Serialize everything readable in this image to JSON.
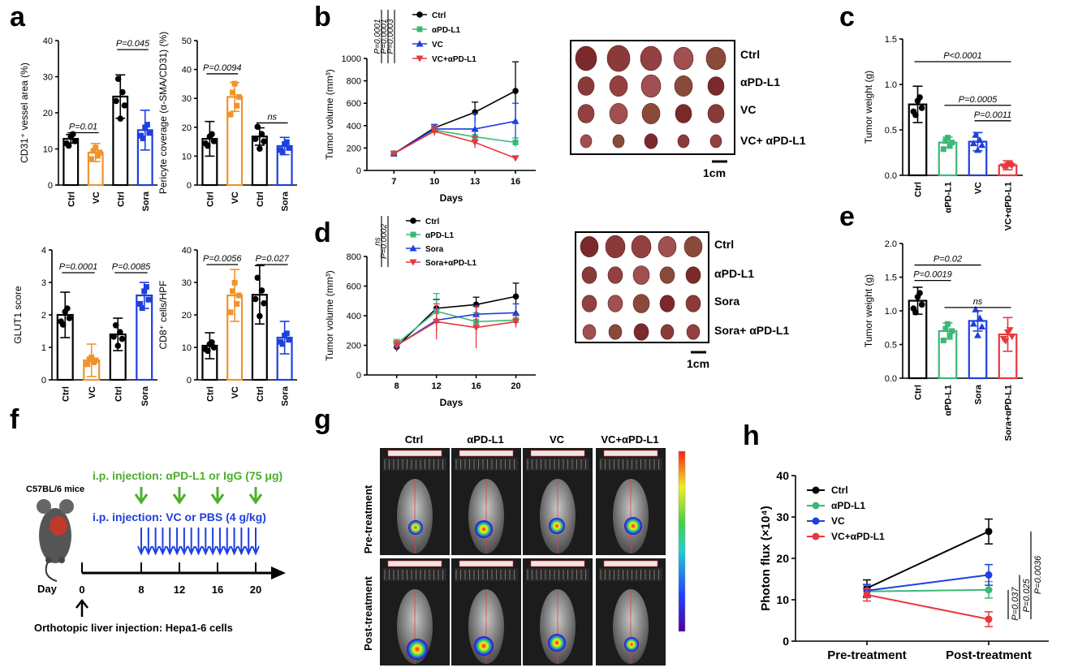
{
  "panel_labels": {
    "a": "a",
    "b": "b",
    "c": "c",
    "d": "d",
    "e": "e",
    "f": "f",
    "g": "g",
    "h": "h"
  },
  "chart_data": [
    {
      "id": "a1",
      "type": "bar",
      "categories": [
        "Ctrl",
        "VC",
        "Ctrl",
        "Sora"
      ],
      "values": [
        12.8,
        9,
        24.5,
        15.2
      ],
      "errors": [
        1.2,
        2.5,
        6,
        5.5
      ],
      "colors": [
        "#000000",
        "#f0932b",
        "#000000",
        "#1f3fe0"
      ],
      "ylabel": "CD31⁺ vessel area (%)",
      "ylim": [
        0,
        40
      ],
      "yticks": [
        0,
        10,
        20,
        30,
        40
      ],
      "sig": [
        {
          "text": "P=0.01",
          "g1": 0,
          "g2": 1,
          "y": 14.5
        },
        {
          "text": "P=0.045",
          "g1": 2,
          "g2": 3,
          "y": 37.5
        }
      ]
    },
    {
      "id": "a2",
      "type": "bar",
      "categories": [
        "Ctrl",
        "VC",
        "Ctrl",
        "Sora"
      ],
      "values": [
        16,
        30.5,
        16.8,
        13.5
      ],
      "errors": [
        6,
        5,
        3,
        3
      ],
      "colors": [
        "#000000",
        "#f0932b",
        "#000000",
        "#1f3fe0"
      ],
      "ylabel": "Pericyte coverage (α-SMA/CD31) (%)",
      "ylim": [
        0,
        50
      ],
      "yticks": [
        0,
        10,
        20,
        30,
        40,
        50
      ],
      "sig": [
        {
          "text": "P=0.0094",
          "g1": 0,
          "g2": 1,
          "y": 38.5
        },
        {
          "text": "ns",
          "g1": 2,
          "g2": 3,
          "y": 21.5
        }
      ]
    },
    {
      "id": "a3",
      "type": "bar",
      "categories": [
        "Ctrl",
        "VC",
        "Ctrl",
        "Sora"
      ],
      "values": [
        2,
        0.6,
        1.4,
        2.6
      ],
      "errors": [
        0.7,
        0.5,
        0.5,
        0.4
      ],
      "colors": [
        "#000000",
        "#f0932b",
        "#000000",
        "#1f3fe0"
      ],
      "ylabel": "GLUT1 score",
      "ylim": [
        0,
        4
      ],
      "yticks": [
        0,
        1,
        2,
        3,
        4
      ],
      "sig": [
        {
          "text": "P=0.0001",
          "g1": 0,
          "g2": 1,
          "y": 3.3
        },
        {
          "text": "P=0.0085",
          "g1": 2,
          "g2": 3,
          "y": 3.3
        }
      ]
    },
    {
      "id": "a4",
      "type": "bar",
      "categories": [
        "Ctrl",
        "VC",
        "Ctrl",
        "Sora"
      ],
      "values": [
        10.5,
        26,
        26.2,
        13
      ],
      "errors": [
        4,
        8,
        9,
        5
      ],
      "colors": [
        "#000000",
        "#f0932b",
        "#000000",
        "#1f3fe0"
      ],
      "ylabel": "CD8⁺ cells/HPF",
      "ylim": [
        0,
        40
      ],
      "yticks": [
        0,
        10,
        20,
        30,
        40
      ],
      "sig": [
        {
          "text": "P=0.0056",
          "g1": 0,
          "g2": 1,
          "y": 35.5
        },
        {
          "text": "P=0.027",
          "g1": 2,
          "g2": 3,
          "y": 35.5
        }
      ]
    },
    {
      "id": "b",
      "type": "line",
      "x": [
        7,
        10,
        13,
        16
      ],
      "xticks": [
        7,
        10,
        13,
        16
      ],
      "xlim": [
        5,
        17.5
      ],
      "xlabel": "Days",
      "ylabel": "Tumor volume (mm³)",
      "ylim": [
        0,
        1000
      ],
      "yticks": [
        0,
        200,
        400,
        600,
        800,
        1000
      ],
      "series": [
        {
          "name": "Ctrl",
          "color": "#000000",
          "values": [
            150,
            380,
            520,
            710
          ],
          "errors": [
            20,
            30,
            90,
            260
          ]
        },
        {
          "name": "αPD-L1",
          "color": "#3cb878",
          "values": [
            150,
            360,
            300,
            250
          ],
          "errors": [
            20,
            40,
            60,
            40
          ]
        },
        {
          "name": "VC",
          "color": "#1f3fe0",
          "values": [
            150,
            370,
            370,
            440
          ],
          "errors": [
            20,
            40,
            140,
            160
          ]
        },
        {
          "name": "VC+αPD-L1",
          "color": "#e8383d",
          "values": [
            150,
            350,
            250,
            110
          ],
          "errors": [
            20,
            40,
            50,
            20
          ]
        }
      ],
      "sig": [
        "P=0.0001",
        "P=0.0001",
        "P=0.0003"
      ]
    },
    {
      "id": "c",
      "type": "bar",
      "categories": [
        "Ctrl",
        "αPD-L1",
        "VC",
        "VC+αPD-L1"
      ],
      "values": [
        0.78,
        0.36,
        0.37,
        0.11
      ],
      "errors": [
        0.2,
        0.06,
        0.1,
        0.05
      ],
      "colors": [
        "#000000",
        "#3cb878",
        "#1f3fe0",
        "#e8383d"
      ],
      "ylabel": "Tumor weight (g)",
      "ylim": [
        0,
        1.5
      ],
      "yticks": [
        0.0,
        0.5,
        1.0,
        1.5
      ],
      "sig": [
        {
          "text": "P<0.0001",
          "g1": 0,
          "g2": 3,
          "y": 1.25
        },
        {
          "text": "P=0.0005",
          "g1": 1,
          "g2": 3,
          "y": 0.77
        },
        {
          "text": "P=0.0011",
          "g1": 2,
          "g2": 3,
          "y": 0.6
        }
      ]
    },
    {
      "id": "d",
      "type": "line",
      "x": [
        8,
        12,
        16,
        20
      ],
      "xticks": [
        8,
        12,
        16,
        20
      ],
      "xlim": [
        5,
        22
      ],
      "xlabel": "Days",
      "ylabel": "Tumor volume (mm³)",
      "ylim": [
        0,
        800
      ],
      "yticks": [
        0,
        200,
        400,
        600,
        800
      ],
      "series": [
        {
          "name": "Ctrl",
          "color": "#000000",
          "values": [
            190,
            450,
            475,
            530
          ],
          "errors": [
            30,
            60,
            50,
            90
          ]
        },
        {
          "name": "αPD-L1",
          "color": "#3cb878",
          "values": [
            210,
            430,
            360,
            370
          ],
          "errors": [
            30,
            120,
            60,
            40
          ]
        },
        {
          "name": "Sora",
          "color": "#1f3fe0",
          "values": [
            200,
            370,
            410,
            420
          ],
          "errors": [
            30,
            80,
            60,
            60
          ]
        },
        {
          "name": "Sora+αPD-L1",
          "color": "#e8383d",
          "values": [
            200,
            360,
            320,
            360
          ],
          "errors": [
            30,
            120,
            140,
            40
          ]
        }
      ],
      "sig": [
        "ns",
        "P=0.0002"
      ]
    },
    {
      "id": "e",
      "type": "bar",
      "categories": [
        "Ctrl",
        "αPD-L1",
        "Sora",
        "Sora+αPD-L1"
      ],
      "values": [
        1.15,
        0.7,
        0.85,
        0.65
      ],
      "errors": [
        0.2,
        0.12,
        0.15,
        0.25
      ],
      "colors": [
        "#000000",
        "#3cb878",
        "#1f3fe0",
        "#e8383d"
      ],
      "ylabel": "Tumor weight (g)",
      "ylim": [
        0,
        2
      ],
      "yticks": [
        0.0,
        0.5,
        1.0,
        1.5,
        2.0
      ],
      "sig": [
        {
          "text": "P=0.02",
          "g1": 0,
          "g2": 2,
          "y": 1.68
        },
        {
          "text": "P=0.0019",
          "g1": 0,
          "g2": 1,
          "y": 1.45
        },
        {
          "text": "ns",
          "g1": 1,
          "g2": 3,
          "y": 1.05
        }
      ]
    },
    {
      "id": "h",
      "type": "line",
      "categories": [
        "Pre-treatment",
        "Post-treatment"
      ],
      "ylabel": "Photon flux (×10⁴)",
      "ylim": [
        0,
        40
      ],
      "yticks": [
        0,
        10,
        20,
        30,
        40
      ],
      "series": [
        {
          "name": "Ctrl",
          "color": "#000000",
          "values": [
            12.8,
            26.5
          ],
          "errors": [
            2,
            3
          ]
        },
        {
          "name": "αPD-L1",
          "color": "#3cb878",
          "values": [
            12,
            12.4
          ],
          "errors": [
            1.5,
            2
          ]
        },
        {
          "name": "VC",
          "color": "#1f3fe0",
          "values": [
            12.2,
            16
          ],
          "errors": [
            1.5,
            2.5
          ]
        },
        {
          "name": "VC+αPD-L1",
          "color": "#e8383d",
          "values": [
            11.2,
            5.3
          ],
          "errors": [
            1.5,
            1.8
          ]
        }
      ],
      "sig": [
        {
          "text": "P=0.0036"
        },
        {
          "text": "P=0.025"
        },
        {
          "text": "P=0.037"
        }
      ]
    }
  ],
  "photos": {
    "b_rows": [
      "Ctrl",
      "αPD-L1",
      "VC",
      "VC+ αPD-L1"
    ],
    "d_rows": [
      "Ctrl",
      "αPD-L1",
      "Sora",
      "Sora+ αPD-L1"
    ],
    "scale": "1cm"
  },
  "schematic": {
    "mice": "C57BL/6 mice",
    "ab_injection": "i.p. injection: αPD-L1 or IgG (75 μg)",
    "vc_injection": "i.p. injection: VC or PBS (4 g/kg)",
    "day_label": "Day",
    "days": [
      "0",
      "8",
      "12",
      "16",
      "20"
    ],
    "ortho": "Orthotopic liver injection: Hepa1-6 cells",
    "ab_color": "#4caf2a",
    "vc_color": "#1f3fe0"
  },
  "imaging": {
    "columns": [
      "Ctrl",
      "αPD-L1",
      "VC",
      "VC+αPD-L1"
    ],
    "rows": [
      "Pre-treatment",
      "Post-treatment"
    ]
  }
}
